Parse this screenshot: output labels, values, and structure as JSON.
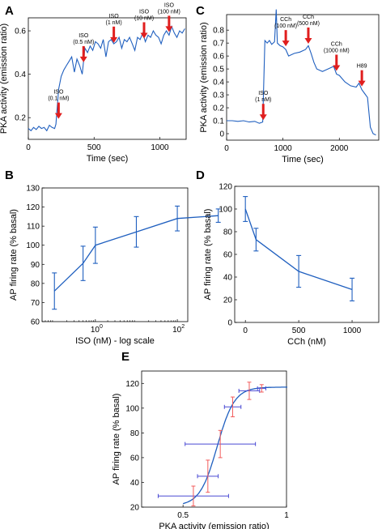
{
  "colors": {
    "trace": "#1f5fbf",
    "arrow": "#e01e1e",
    "err_x": "#4a4ad4",
    "err_y": "#f25c5c"
  },
  "chart_data": [
    {
      "panel": "A",
      "type": "line",
      "xlabel": "Time (sec)",
      "ylabel": "PKA activity (emission ratio)",
      "xlim": [
        0,
        1200
      ],
      "ylim": [
        0.1,
        0.66
      ],
      "xticks": [
        0,
        500,
        1000
      ],
      "yticks": [
        0.2,
        0.4,
        0.6
      ],
      "x": [
        0,
        20,
        40,
        60,
        80,
        100,
        120,
        140,
        160,
        180,
        200,
        210,
        230,
        250,
        270,
        290,
        310,
        330,
        350,
        370,
        390,
        410,
        430,
        450,
        470,
        490,
        510,
        530,
        550,
        570,
        590,
        610,
        630,
        650,
        670,
        690,
        710,
        730,
        750,
        770,
        790,
        810,
        830,
        850,
        870,
        890,
        910,
        930,
        950,
        970,
        990,
        1010,
        1030,
        1050,
        1070,
        1090,
        1110,
        1130,
        1150,
        1170,
        1190
      ],
      "y": [
        0.15,
        0.14,
        0.155,
        0.145,
        0.16,
        0.15,
        0.155,
        0.14,
        0.165,
        0.155,
        0.15,
        0.17,
        0.33,
        0.39,
        0.42,
        0.44,
        0.46,
        0.48,
        0.41,
        0.47,
        0.44,
        0.4,
        0.52,
        0.5,
        0.53,
        0.51,
        0.55,
        0.54,
        0.52,
        0.56,
        0.48,
        0.55,
        0.56,
        0.54,
        0.55,
        0.57,
        0.52,
        0.56,
        0.55,
        0.57,
        0.54,
        0.51,
        0.57,
        0.56,
        0.59,
        0.55,
        0.58,
        0.57,
        0.6,
        0.58,
        0.57,
        0.54,
        0.58,
        0.6,
        0.58,
        0.62,
        0.59,
        0.57,
        0.6,
        0.59,
        0.61
      ],
      "annotations": [
        {
          "lines": [
            "ISO",
            "(0.1 nM)"
          ],
          "x": 230,
          "y": 0.18
        },
        {
          "lines": [
            "ISO",
            "(0.5 nM)"
          ],
          "x": 420,
          "y": 0.44
        },
        {
          "lines": [
            "ISO",
            "(1 nM)"
          ],
          "x": 650,
          "y": 0.53
        },
        {
          "lines": [
            "ISO",
            "(10 nM)"
          ],
          "x": 880,
          "y": 0.55
        },
        {
          "lines": [
            "ISO",
            "(100 nM)"
          ],
          "x": 1070,
          "y": 0.58
        }
      ]
    },
    {
      "panel": "C",
      "type": "line",
      "xlabel": "Time (sec)",
      "ylabel": "PKA activity (emission ratio)",
      "xlim": [
        0,
        2700
      ],
      "ylim": [
        -0.05,
        0.92
      ],
      "xticks": [
        0,
        1000,
        2000
      ],
      "yticks": [
        0,
        0.1,
        0.2,
        0.3,
        0.4,
        0.5,
        0.6,
        0.7,
        0.8
      ],
      "x": [
        0,
        100,
        200,
        300,
        400,
        500,
        580,
        640,
        680,
        720,
        760,
        800,
        850,
        880,
        900,
        950,
        1000,
        1050,
        1100,
        1200,
        1300,
        1400,
        1450,
        1500,
        1550,
        1600,
        1700,
        1800,
        1900,
        1950,
        2000,
        2100,
        2200,
        2300,
        2350,
        2400,
        2450,
        2500,
        2550,
        2600,
        2650
      ],
      "y": [
        0.1,
        0.1,
        0.095,
        0.1,
        0.09,
        0.095,
        0.08,
        0.09,
        0.72,
        0.7,
        0.72,
        0.69,
        0.71,
        0.96,
        0.7,
        0.68,
        0.67,
        0.65,
        0.6,
        0.62,
        0.63,
        0.65,
        0.68,
        0.62,
        0.55,
        0.5,
        0.48,
        0.5,
        0.52,
        0.46,
        0.45,
        0.4,
        0.37,
        0.36,
        0.39,
        0.34,
        0.31,
        0.28,
        0.05,
        0.0,
        -0.01
      ],
      "annotations": [
        {
          "lines": [
            "ISO",
            "(1 nM)"
          ],
          "x": 650,
          "y": 0.08
        },
        {
          "lines": [
            "CCh",
            "(100 nM)"
          ],
          "x": 1050,
          "y": 0.65
        },
        {
          "lines": [
            "CCh",
            "(500 nM)"
          ],
          "x": 1450,
          "y": 0.67
        },
        {
          "lines": [
            "CCh",
            "(1000 nM)"
          ],
          "x": 1950,
          "y": 0.46
        },
        {
          "lines": [
            "H89"
          ],
          "x": 2400,
          "y": 0.34
        }
      ]
    },
    {
      "panel": "B",
      "type": "line",
      "xlabel": "ISO (nM) - log scale",
      "ylabel": "AP firing rate (% basal)",
      "xscale": "log",
      "xlim": [
        0.05,
        180
      ],
      "ylim": [
        60,
        130
      ],
      "xticks": [
        "10^0",
        "10^2"
      ],
      "yticks": [
        60,
        70,
        80,
        90,
        100,
        110,
        120,
        130
      ],
      "x": [
        0.1,
        0.5,
        1,
        10,
        100,
        1000
      ],
      "y": [
        76,
        90.5,
        100,
        107,
        114,
        115.5
      ],
      "yerr": [
        9.5,
        9,
        9.5,
        8,
        6.5,
        3.5
      ]
    },
    {
      "panel": "D",
      "type": "line",
      "xlabel": "CCh (nM)",
      "ylabel": "AP firing rate (% basal)",
      "xlim": [
        -100,
        1250
      ],
      "ylim": [
        0,
        120
      ],
      "xticks": [
        0,
        500,
        1000
      ],
      "yticks": [
        0,
        20,
        40,
        60,
        80,
        100,
        120
      ],
      "x": [
        0,
        100,
        500,
        1000
      ],
      "y": [
        100,
        73,
        45,
        29
      ],
      "yerr": [
        11,
        10,
        14,
        10
      ]
    },
    {
      "panel": "E",
      "type": "scatter",
      "xlabel": "PKA activity (emission ratio)",
      "ylabel": "AP firing rate (% basal)",
      "xlim": [
        0.3,
        1.0
      ],
      "ylim": [
        20,
        130
      ],
      "xticks": [
        0.5,
        1
      ],
      "yticks": [
        20,
        40,
        60,
        80,
        100,
        120
      ],
      "points": [
        {
          "x": 0.55,
          "y": 29,
          "xerr": 0.17,
          "yerr": 8
        },
        {
          "x": 0.62,
          "y": 45,
          "xerr": 0.05,
          "yerr": 13
        },
        {
          "x": 0.68,
          "y": 71,
          "xerr": 0.17,
          "yerr": 11
        },
        {
          "x": 0.74,
          "y": 101,
          "xerr": 0.04,
          "yerr": 8
        },
        {
          "x": 0.82,
          "y": 114,
          "xerr": 0.05,
          "yerr": 7
        },
        {
          "x": 0.88,
          "y": 116,
          "xerr": 0.02,
          "yerr": 3
        }
      ],
      "fit": {
        "model": "sigmoid",
        "bottom": 21,
        "top": 117,
        "x50": 0.665,
        "slope": 0.042
      }
    }
  ]
}
